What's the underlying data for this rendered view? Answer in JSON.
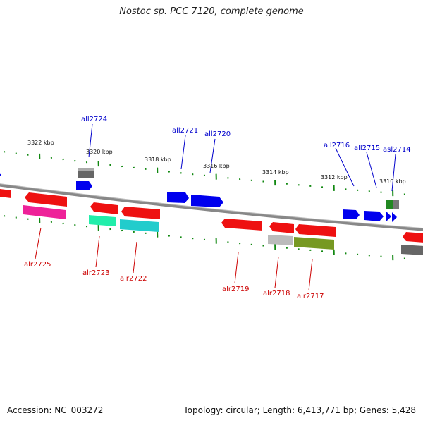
{
  "title": "Nostoc sp. PCC 7120, complete genome",
  "footer": {
    "accession": "Accession: NC_003272",
    "summary": "Topology: circular; Length: 6,413,771 bp; Genes: 5,428"
  },
  "scale_labels": [
    "3322 kbp",
    "3320 kbp",
    "3318 kbp",
    "3316 kbp",
    "3314 kbp",
    "3312 kbp",
    "3310 kbp"
  ],
  "gene_labels_forward": [
    "all2724",
    "all2721",
    "all2720",
    "all2716",
    "all2715",
    "asl2714"
  ],
  "gene_labels_reverse": [
    "alr2725",
    "alr2723",
    "alr2722",
    "alr2719",
    "alr2718",
    "alr2717"
  ],
  "colors": {
    "forward_label": "#0000cc",
    "reverse_label": "#cc0000",
    "tick": "#118811",
    "backbone": "#888888"
  }
}
